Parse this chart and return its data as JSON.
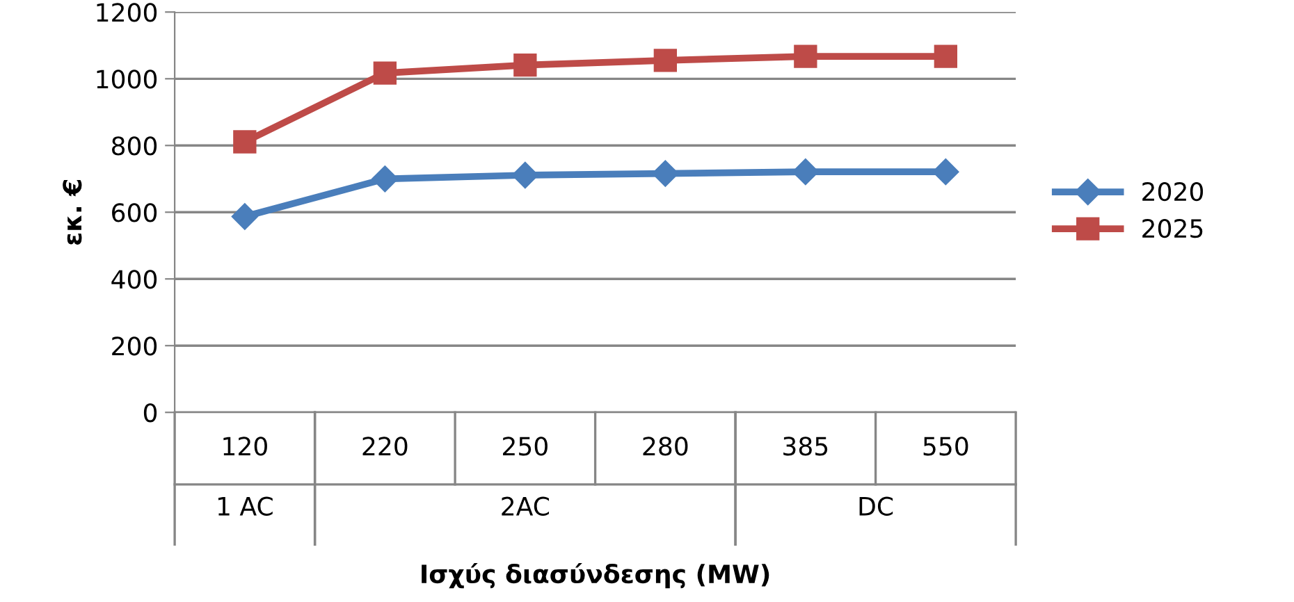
{
  "chart_data": {
    "type": "line",
    "xlabel": "Ισχύς διασύνδεσης (MW)",
    "ylabel": "εκ. €",
    "categories": [
      "120",
      "220",
      "250",
      "280",
      "385",
      "550"
    ],
    "series": [
      {
        "name": "2020",
        "color": "#4a7ebb",
        "marker": "diamond",
        "values": [
          587,
          700,
          711,
          716,
          721,
          721
        ]
      },
      {
        "name": "2025",
        "color": "#be4b48",
        "marker": "square",
        "values": [
          811,
          1017,
          1041,
          1055,
          1067,
          1067
        ]
      }
    ],
    "annotations": [
      "1 AC",
      "2AC",
      "DC"
    ],
    "ylim": [
      0,
      1200
    ],
    "yticks": [
      0,
      200,
      400,
      600,
      800,
      1000,
      1200
    ],
    "grid": "y",
    "legend": "right"
  }
}
